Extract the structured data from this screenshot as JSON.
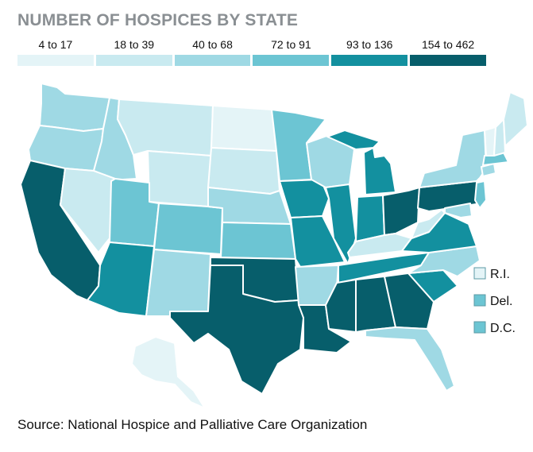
{
  "title": "NUMBER OF HOSPICES BY STATE",
  "legend": [
    {
      "label": "4 to 17",
      "color": "#e4f4f7"
    },
    {
      "label": "18 to 39",
      "color": "#c9eaf0"
    },
    {
      "label": "40 to 68",
      "color": "#9fd9e4"
    },
    {
      "label": "72 to 91",
      "color": "#6cc5d3"
    },
    {
      "label": "93 to 136",
      "color": "#13909f"
    },
    {
      "label": "154 to 462",
      "color": "#075e6b"
    }
  ],
  "small_states": [
    {
      "label": "R.I.",
      "bin": 0
    },
    {
      "label": "Del.",
      "bin": 3
    },
    {
      "label": "D.C.",
      "bin": 3
    }
  ],
  "states": {
    "WA": 2,
    "OR": 2,
    "CA": 5,
    "ID": 2,
    "NV": 1,
    "MT": 1,
    "WY": 1,
    "UT": 3,
    "AZ": 4,
    "CO": 3,
    "NM": 2,
    "ND": 0,
    "SD": 1,
    "NE": 2,
    "KS": 3,
    "OK": 5,
    "TX": 5,
    "MN": 3,
    "IA": 4,
    "MO": 4,
    "AR": 2,
    "LA": 5,
    "WI": 2,
    "IL": 4,
    "MI": 4,
    "IN": 4,
    "OH": 5,
    "KY": 1,
    "TN": 4,
    "MS": 5,
    "AL": 5,
    "GA": 5,
    "FL": 2,
    "SC": 4,
    "NC": 2,
    "VA": 4,
    "WV": 1,
    "PA": 5,
    "NY": 2,
    "VT": 0,
    "NH": 1,
    "ME": 1,
    "MA": 3,
    "CT": 2,
    "NJ": 3,
    "MD": 2,
    "AK": 0
  },
  "source": "Source: National Hospice and Palliative Care Organization"
}
